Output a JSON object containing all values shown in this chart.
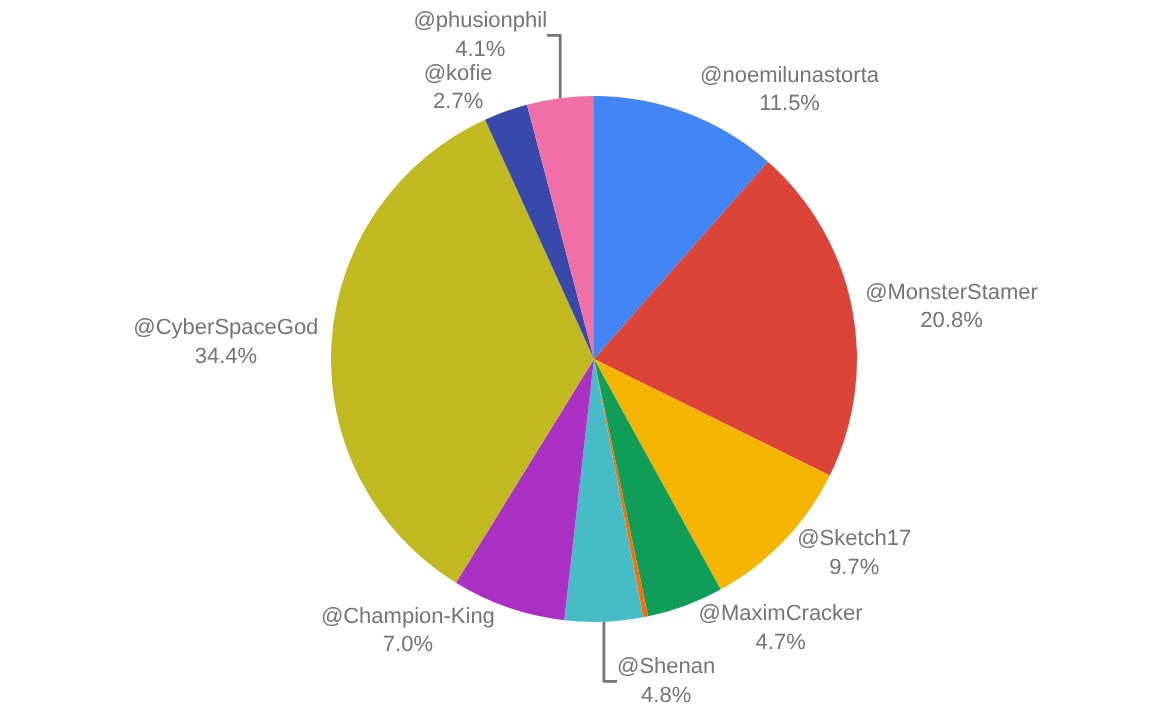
{
  "chart_data": {
    "type": "pie",
    "categories": [
      "@noemilunastorta",
      "@MonsterStamer",
      "@Sketch17",
      "@MaximCracker",
      null,
      "@Shenan",
      "@Champion-King",
      "@CyberSpaceGod",
      "@kofie",
      "@phusionphil"
    ],
    "values": [
      11.5,
      20.8,
      9.7,
      4.7,
      0.3,
      4.8,
      7.0,
      34.4,
      2.7,
      4.1
    ],
    "value_labels": [
      "11.5%",
      "20.8%",
      "9.7%",
      "4.7%",
      null,
      "4.8%",
      "7.0%",
      "34.4%",
      "2.7%",
      "4.1%"
    ],
    "colors": [
      "#4285f4",
      "#db4437",
      "#f4b400",
      "#0f9d58",
      "#ff6d00",
      "#46bdc6",
      "#ab30c4",
      "#c0ba20",
      "#3949ab",
      "#f06fa6"
    ],
    "legend": false
  }
}
